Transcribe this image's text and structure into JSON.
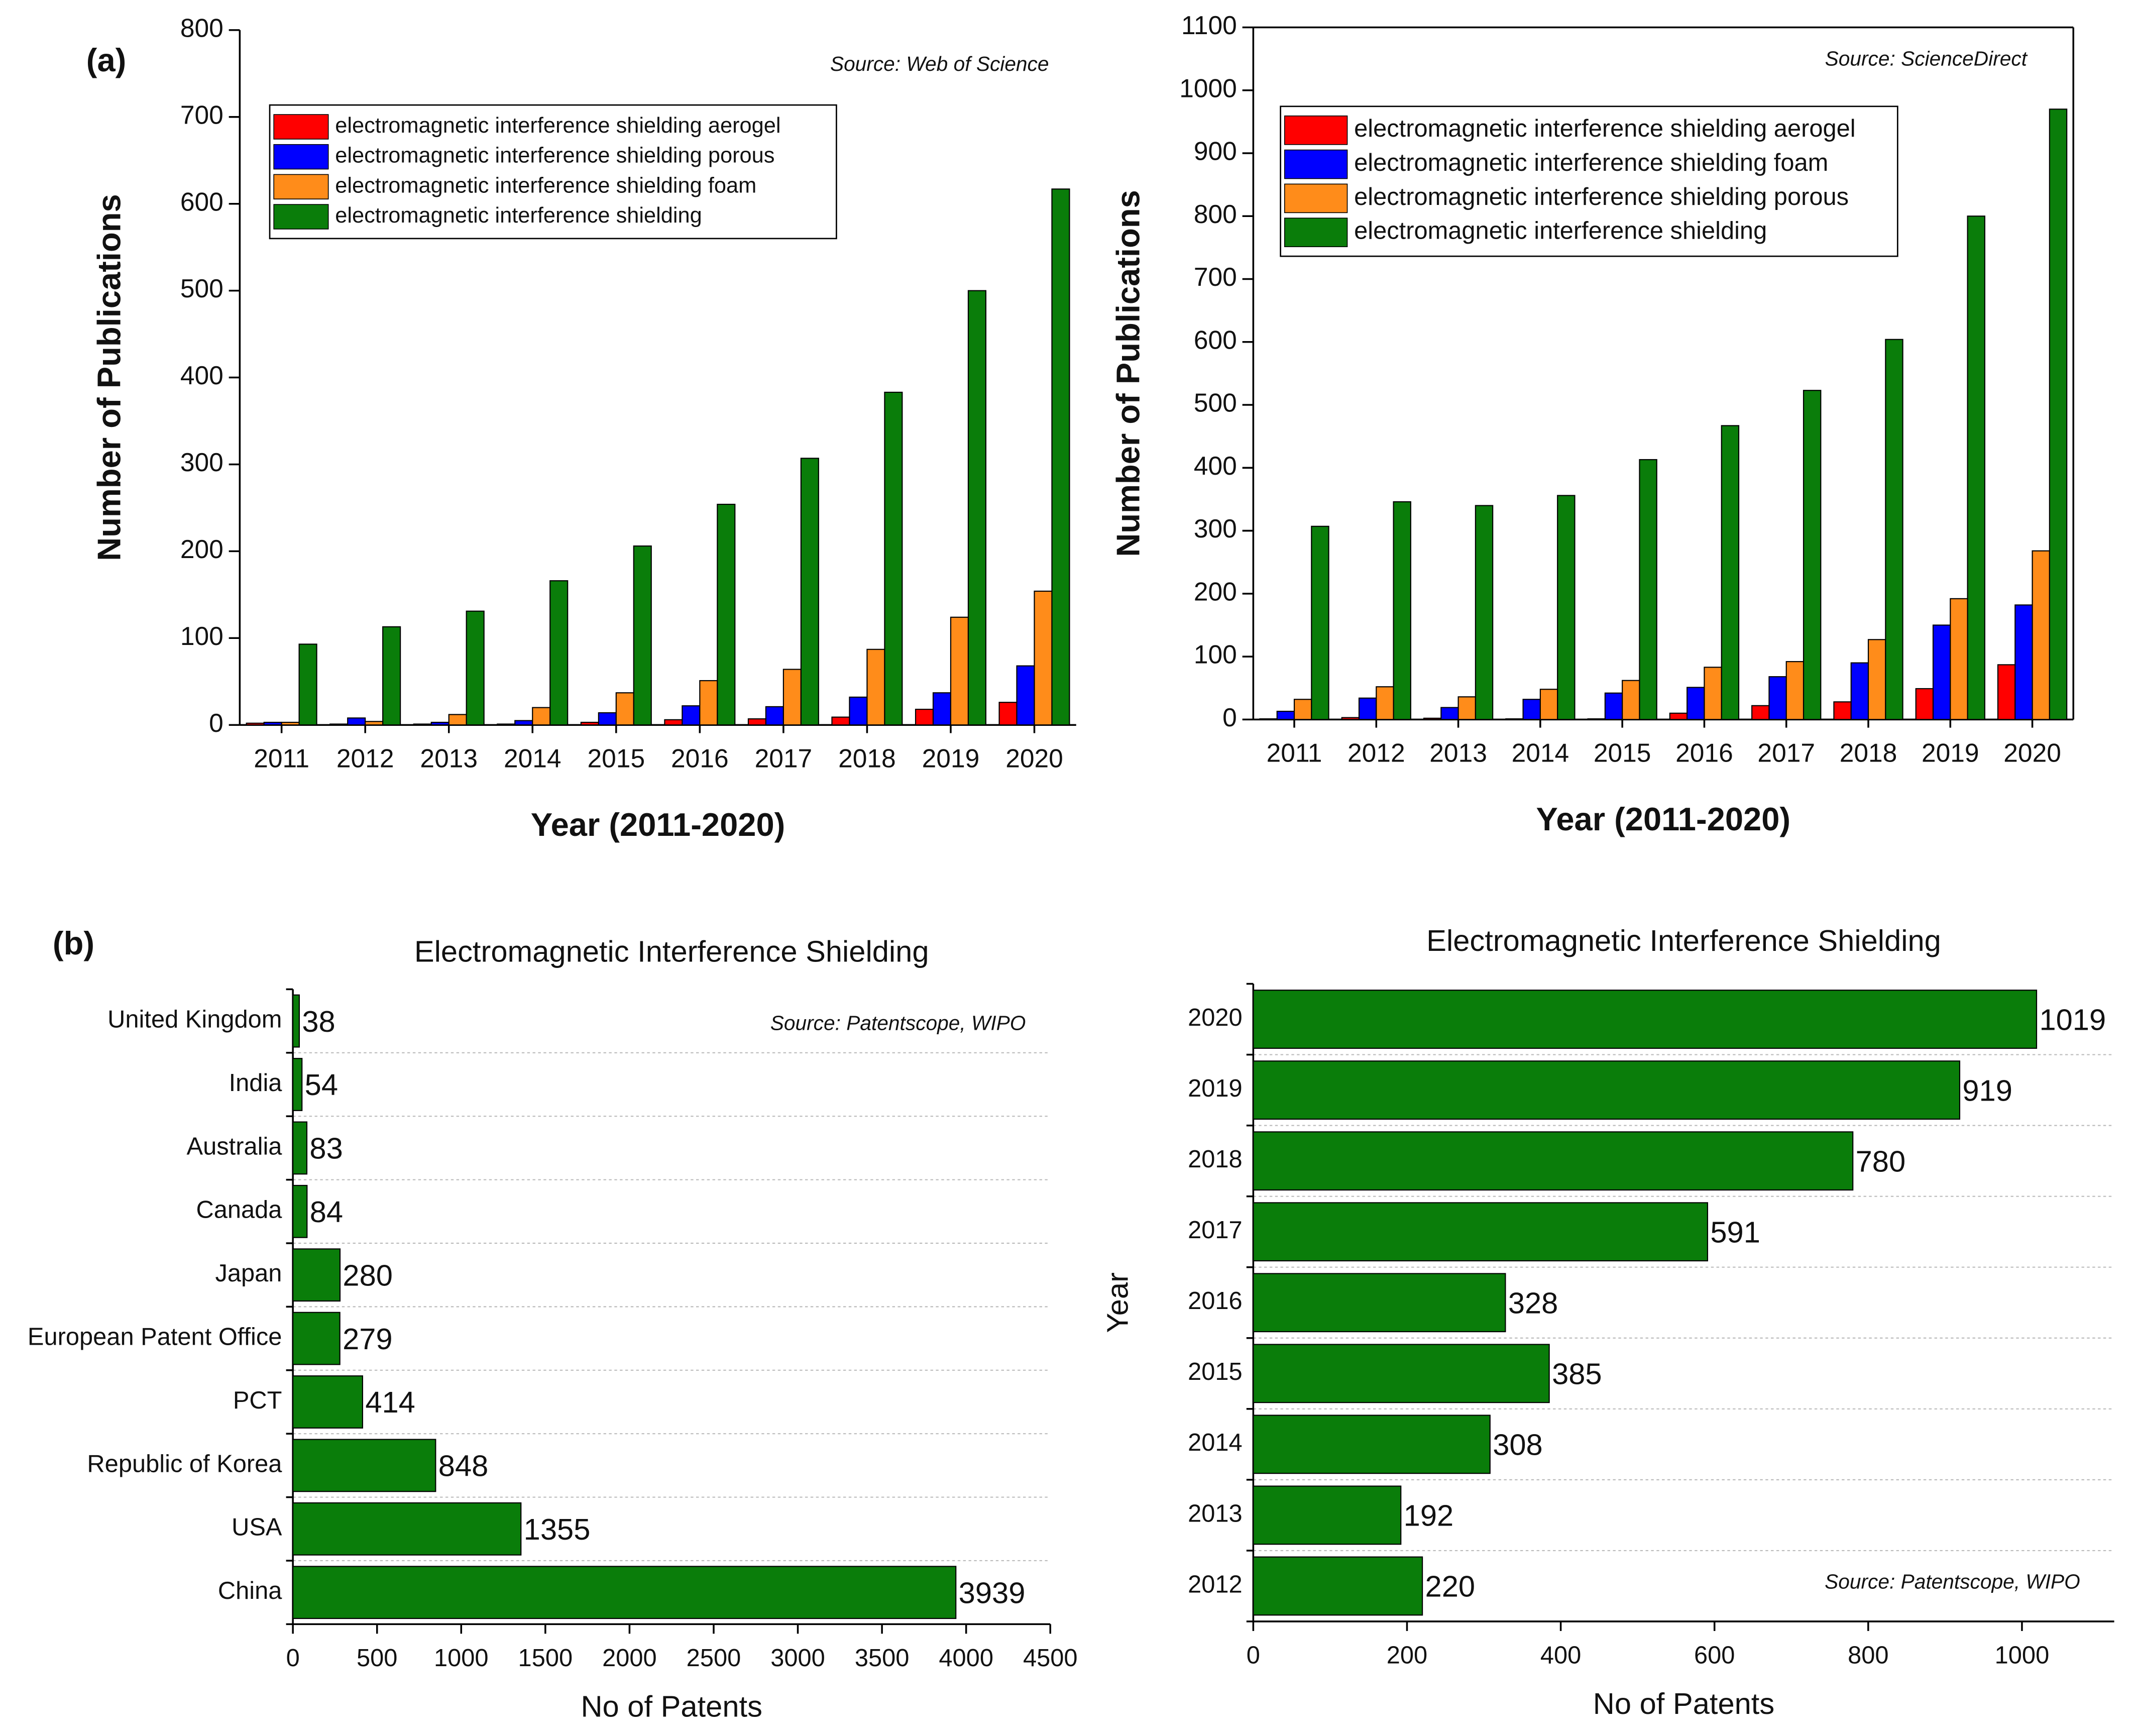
{
  "chart_data": [
    {
      "type": "bar",
      "panel_label": "(a)",
      "annotation": "Source: Web of Science",
      "x_label": "Year (2011-2020)",
      "y_label": "Number of Publications",
      "categories": [
        "2011",
        "2012",
        "2013",
        "2014",
        "2015",
        "2016",
        "2017",
        "2018",
        "2019",
        "2020"
      ],
      "series": [
        {
          "name": "electromagnetic interference shielding aerogel",
          "color": "#ff0000",
          "values": [
            2,
            1,
            1,
            1,
            3,
            6,
            7,
            9,
            18,
            26
          ]
        },
        {
          "name": "electromagnetic interference shielding porous",
          "color": "#0000ff",
          "values": [
            3,
            8,
            3,
            5,
            14,
            22,
            21,
            32,
            37,
            68
          ]
        },
        {
          "name": "electromagnetic interference shielding foam",
          "color": "#ff8c1a",
          "values": [
            3,
            4,
            12,
            20,
            37,
            51,
            64,
            87,
            124,
            154
          ]
        },
        {
          "name": "electromagnetic interference shielding",
          "color": "#0a7d0a",
          "values": [
            93,
            113,
            131,
            166,
            206,
            254,
            307,
            383,
            500,
            617
          ]
        }
      ],
      "ylim": [
        0,
        800
      ],
      "yticks": [
        0,
        100,
        200,
        300,
        400,
        500,
        600,
        700,
        800
      ],
      "legend": "upper left"
    },
    {
      "type": "bar",
      "annotation": "Source: ScienceDirect",
      "x_label": "Year (2011-2020)",
      "y_label": "Number of Publications",
      "categories": [
        "2011",
        "2012",
        "2013",
        "2014",
        "2015",
        "2016",
        "2017",
        "2018",
        "2019",
        "2020"
      ],
      "series": [
        {
          "name": "electromagnetic interference shielding aerogel",
          "color": "#ff0000",
          "values": [
            1,
            3,
            2,
            1,
            1,
            10,
            22,
            28,
            49,
            87
          ]
        },
        {
          "name": "electromagnetic interference shielding foam",
          "color": "#0000ff",
          "values": [
            13,
            34,
            19,
            32,
            42,
            51,
            68,
            90,
            150,
            182
          ]
        },
        {
          "name": "electromagnetic interference shielding porous",
          "color": "#ff8c1a",
          "values": [
            32,
            52,
            36,
            48,
            62,
            83,
            92,
            127,
            192,
            268
          ]
        },
        {
          "name": "electromagnetic interference shielding",
          "color": "#0a7d0a",
          "values": [
            307,
            346,
            340,
            356,
            413,
            467,
            523,
            604,
            800,
            970
          ]
        }
      ],
      "ylim": [
        0,
        1100
      ],
      "yticks": [
        0,
        100,
        200,
        300,
        400,
        500,
        600,
        700,
        800,
        900,
        1000,
        1100
      ],
      "legend": "upper left"
    },
    {
      "type": "barh",
      "panel_label": "(b)",
      "title": "Electromagnetic Interference Shielding",
      "annotation": "Source: Patentscope, WIPO",
      "x_label": "No of Patents",
      "categories": [
        "United Kingdom",
        "India",
        "Australia",
        "Canada",
        "Japan",
        "European Patent Office",
        "PCT",
        "Republic of Korea",
        "USA",
        "China"
      ],
      "values": [
        38,
        54,
        83,
        84,
        280,
        279,
        414,
        848,
        1355,
        3939
      ],
      "color": "#0a7d0a",
      "xlim": [
        0,
        4500
      ],
      "xticks": [
        0,
        500,
        1000,
        1500,
        2000,
        2500,
        3000,
        3500,
        4000,
        4500
      ],
      "grid": true
    },
    {
      "type": "barh",
      "title": "Electromagnetic Interference Shielding",
      "annotation": "Source: Patentscope, WIPO",
      "x_label": "No of Patents",
      "y_label": "Year",
      "categories": [
        "2020",
        "2019",
        "2018",
        "2017",
        "2016",
        "2015",
        "2014",
        "2013",
        "2012"
      ],
      "values": [
        1019,
        919,
        780,
        591,
        328,
        385,
        308,
        192,
        220
      ],
      "color": "#0a7d0a",
      "xlim": [
        0,
        1120
      ],
      "xticks": [
        0,
        200,
        400,
        600,
        800,
        1000
      ],
      "grid": true
    }
  ]
}
